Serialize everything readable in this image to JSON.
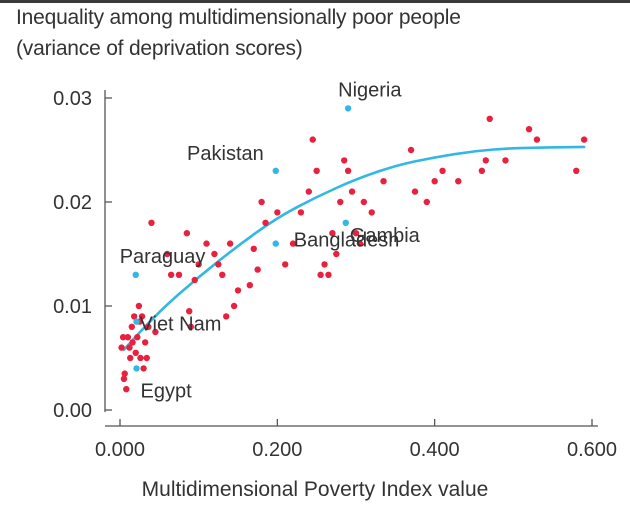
{
  "chart_data": {
    "type": "scatter",
    "title_lines": [
      "Inequality among multidimensionally poor people",
      "(variance of deprivation scores)"
    ],
    "xlabel": "Multidimensional Poverty Index value",
    "ylabel": "",
    "xlim": [
      0,
      0.6
    ],
    "ylim": [
      0,
      0.03
    ],
    "xticks": [
      "0.000",
      "0.200",
      "0.400",
      "0.600"
    ],
    "yticks": [
      "0.00",
      "0.01",
      "0.02",
      "0.03"
    ],
    "grid": false,
    "colors": {
      "point": "#e8213f",
      "highlight": "#33b7e3",
      "trend": "#33b7e3",
      "axis": "#555555",
      "text": "#333333"
    },
    "highlighted": [
      {
        "name": "Nigeria",
        "x": 0.29,
        "y": 0.029,
        "label_pos": "above"
      },
      {
        "name": "Pakistan",
        "x": 0.198,
        "y": 0.023,
        "label_pos": "upper-left"
      },
      {
        "name": "Gambia",
        "x": 0.287,
        "y": 0.018,
        "label_pos": "lower-right"
      },
      {
        "name": "Bangladesh",
        "x": 0.198,
        "y": 0.016,
        "label_pos": "right"
      },
      {
        "name": "Paraguay",
        "x": 0.02,
        "y": 0.013,
        "label_pos": "above"
      },
      {
        "name": "Viet Nam",
        "x": 0.021,
        "y": 0.0085,
        "label_pos": "right"
      },
      {
        "name": "Egypt",
        "x": 0.021,
        "y": 0.004,
        "label_pos": "below-right"
      }
    ],
    "others": [
      [
        0.002,
        0.006
      ],
      [
        0.004,
        0.007
      ],
      [
        0.005,
        0.003
      ],
      [
        0.006,
        0.0035
      ],
      [
        0.008,
        0.002
      ],
      [
        0.01,
        0.007
      ],
      [
        0.012,
        0.006
      ],
      [
        0.013,
        0.005
      ],
      [
        0.015,
        0.008
      ],
      [
        0.016,
        0.0065
      ],
      [
        0.018,
        0.009
      ],
      [
        0.02,
        0.0055
      ],
      [
        0.022,
        0.007
      ],
      [
        0.024,
        0.01
      ],
      [
        0.025,
        0.0085
      ],
      [
        0.026,
        0.005
      ],
      [
        0.028,
        0.009
      ],
      [
        0.03,
        0.004
      ],
      [
        0.032,
        0.0065
      ],
      [
        0.034,
        0.005
      ],
      [
        0.036,
        0.008
      ],
      [
        0.04,
        0.018
      ],
      [
        0.045,
        0.0075
      ],
      [
        0.06,
        0.015
      ],
      [
        0.065,
        0.013
      ],
      [
        0.075,
        0.013
      ],
      [
        0.085,
        0.017
      ],
      [
        0.088,
        0.0095
      ],
      [
        0.09,
        0.008
      ],
      [
        0.095,
        0.0125
      ],
      [
        0.1,
        0.014
      ],
      [
        0.11,
        0.016
      ],
      [
        0.12,
        0.015
      ],
      [
        0.125,
        0.014
      ],
      [
        0.13,
        0.013
      ],
      [
        0.135,
        0.009
      ],
      [
        0.14,
        0.016
      ],
      [
        0.145,
        0.01
      ],
      [
        0.15,
        0.0115
      ],
      [
        0.165,
        0.012
      ],
      [
        0.17,
        0.0155
      ],
      [
        0.175,
        0.0135
      ],
      [
        0.18,
        0.02
      ],
      [
        0.185,
        0.018
      ],
      [
        0.2,
        0.019
      ],
      [
        0.21,
        0.014
      ],
      [
        0.22,
        0.016
      ],
      [
        0.23,
        0.019
      ],
      [
        0.24,
        0.021
      ],
      [
        0.245,
        0.026
      ],
      [
        0.25,
        0.023
      ],
      [
        0.255,
        0.013
      ],
      [
        0.26,
        0.014
      ],
      [
        0.265,
        0.013
      ],
      [
        0.27,
        0.017
      ],
      [
        0.275,
        0.015
      ],
      [
        0.28,
        0.02
      ],
      [
        0.285,
        0.024
      ],
      [
        0.29,
        0.023
      ],
      [
        0.295,
        0.021
      ],
      [
        0.3,
        0.017
      ],
      [
        0.305,
        0.016
      ],
      [
        0.31,
        0.02
      ],
      [
        0.32,
        0.019
      ],
      [
        0.335,
        0.022
      ],
      [
        0.37,
        0.025
      ],
      [
        0.375,
        0.021
      ],
      [
        0.39,
        0.02
      ],
      [
        0.4,
        0.022
      ],
      [
        0.41,
        0.023
      ],
      [
        0.43,
        0.022
      ],
      [
        0.46,
        0.023
      ],
      [
        0.465,
        0.024
      ],
      [
        0.47,
        0.028
      ],
      [
        0.49,
        0.024
      ],
      [
        0.52,
        0.027
      ],
      [
        0.53,
        0.026
      ],
      [
        0.58,
        0.023
      ],
      [
        0.59,
        0.026
      ]
    ],
    "trendline": [
      [
        0.005,
        0.0058
      ],
      [
        0.05,
        0.0095
      ],
      [
        0.1,
        0.0128
      ],
      [
        0.15,
        0.0158
      ],
      [
        0.2,
        0.0185
      ],
      [
        0.25,
        0.0205
      ],
      [
        0.3,
        0.0222
      ],
      [
        0.35,
        0.0235
      ],
      [
        0.4,
        0.0243
      ],
      [
        0.45,
        0.0249
      ],
      [
        0.5,
        0.0252
      ],
      [
        0.59,
        0.0253
      ]
    ]
  }
}
